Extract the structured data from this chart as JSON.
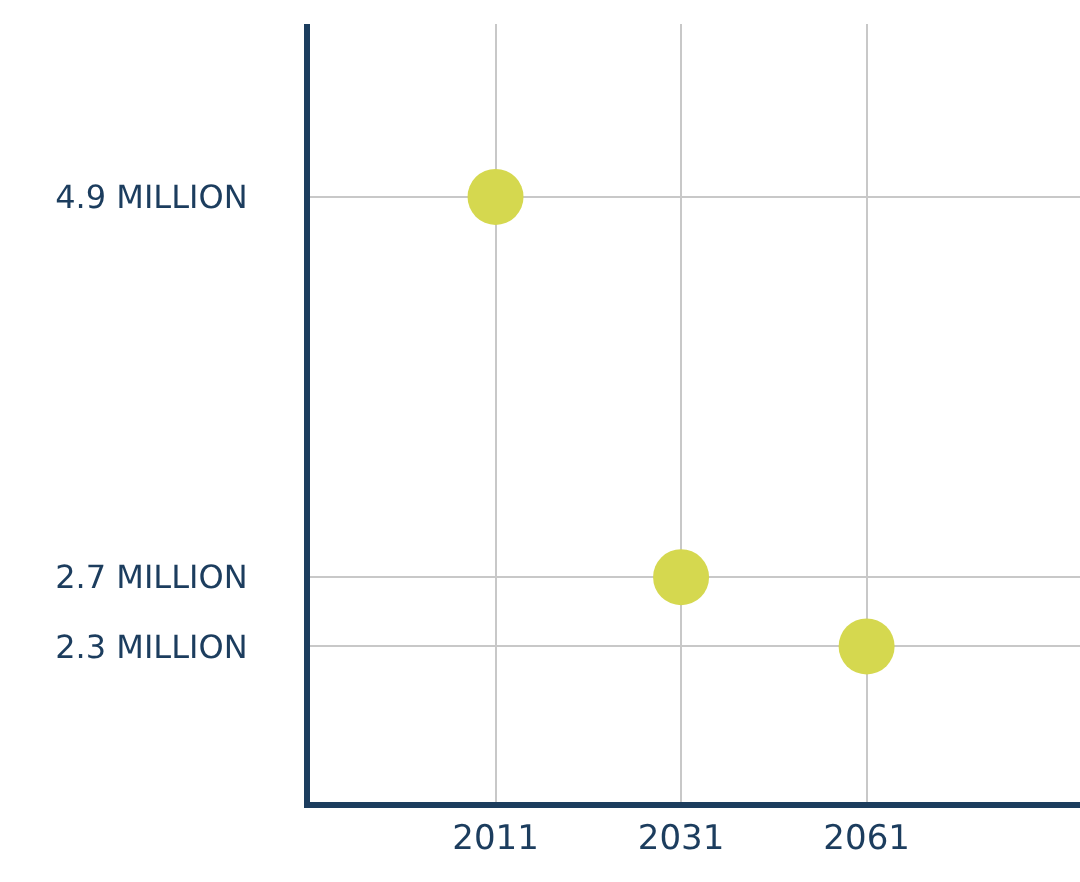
{
  "chart_data": {
    "type": "scatter",
    "categories": [
      "2011",
      "2031",
      "2061"
    ],
    "values": [
      4.9,
      2.7,
      2.3
    ],
    "color": "#d5d84f",
    "marker": "circle",
    "ylim": [
      1.4,
      5.9
    ],
    "yticks": [
      {
        "value": 2.3,
        "label": "2.3 MILLION"
      },
      {
        "value": 2.7,
        "label": "2.7 MILLION"
      },
      {
        "value": 4.9,
        "label": "4.9 MILLION"
      }
    ],
    "grid": true
  }
}
